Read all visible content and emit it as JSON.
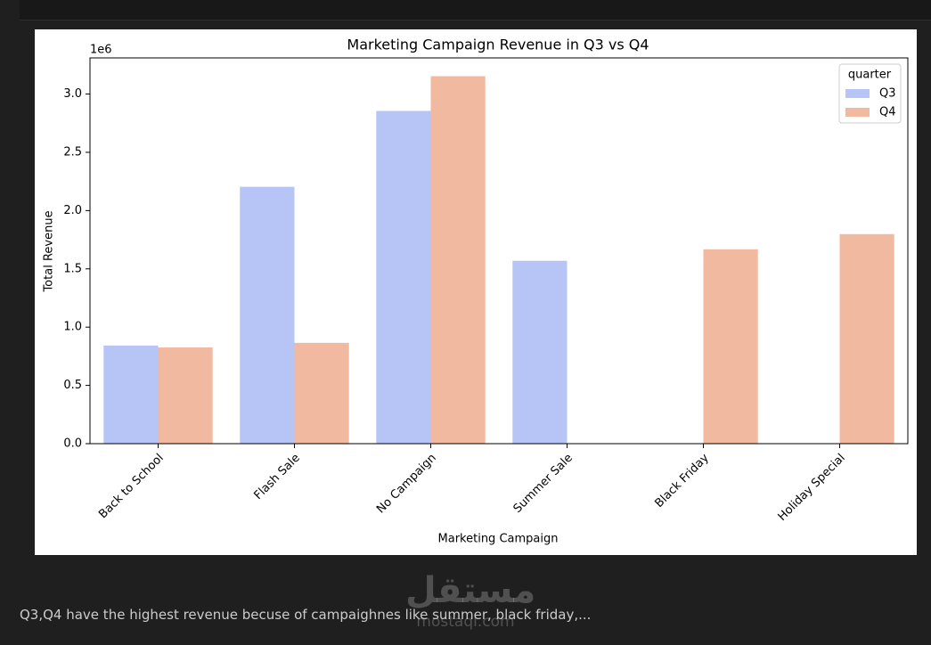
{
  "chart_data": {
    "type": "bar",
    "title": "Marketing Campaign Revenue in Q3 vs Q4",
    "x_label": "Marketing Campaign",
    "y_label": "Total Revenue",
    "y_offset_label": "1e6",
    "categories": [
      "Back to School",
      "Flash Sale",
      "No Campaign",
      "Summer Sale",
      "Black Friday",
      "Holiday Special"
    ],
    "series": [
      {
        "name": "Q3",
        "color": "#b6c4f6",
        "values": [
          0.842,
          2.204,
          2.855,
          1.569,
          null,
          null
        ]
      },
      {
        "name": "Q4",
        "color": "#f0b9a0",
        "values": [
          0.826,
          0.865,
          3.153,
          null,
          1.668,
          1.798
        ]
      }
    ],
    "legend_title": "quarter",
    "legend_position": "upper right",
    "ylim": [
      0,
      3.31
    ],
    "yticks": [
      {
        "value": 0,
        "label": "0.0"
      },
      {
        "value": 0.5,
        "label": "0.5"
      },
      {
        "value": 1,
        "label": "1.0"
      },
      {
        "value": 1.5,
        "label": "1.5"
      },
      {
        "value": 2,
        "label": "2.0"
      },
      {
        "value": 2.5,
        "label": "2.5"
      },
      {
        "value": 3,
        "label": "3.0"
      }
    ],
    "grid": false
  },
  "notebook": {
    "note": "Q3,Q4 have the highest revenue becuse of campaighnes like summer, black friday,...",
    "watermark": "مستقل",
    "watermark_url": "mostaql.com"
  }
}
